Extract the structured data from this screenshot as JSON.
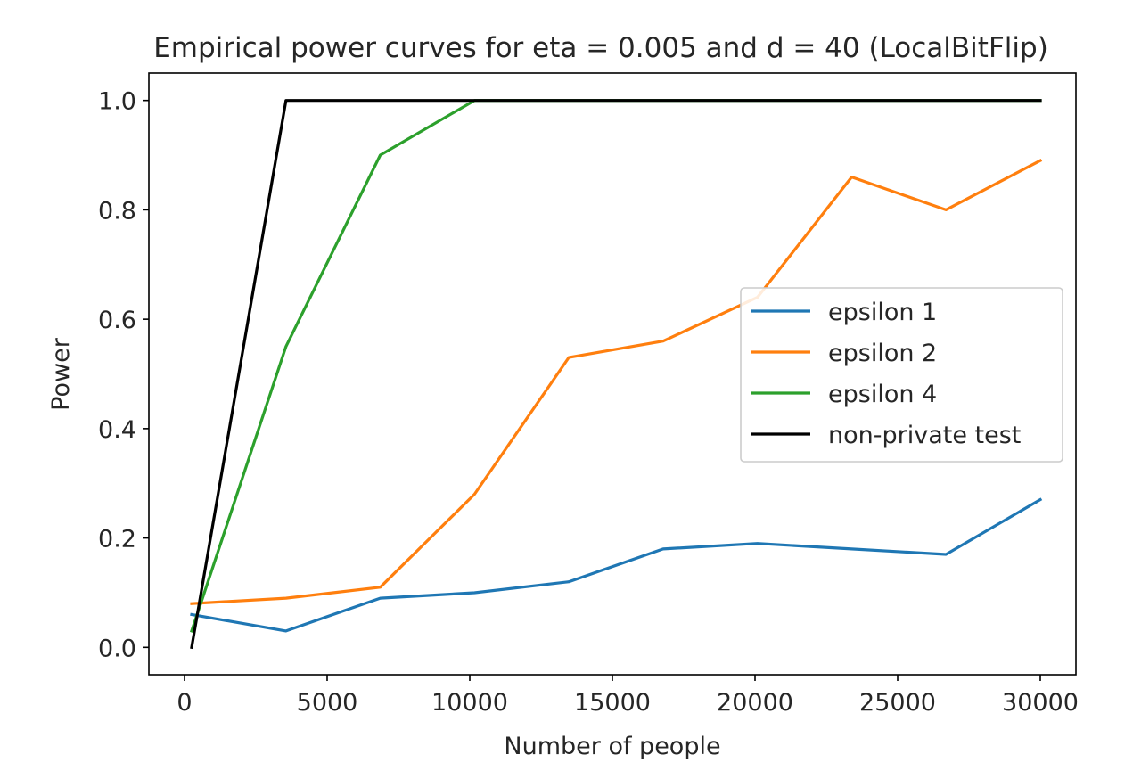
{
  "chart_data": {
    "type": "line",
    "title": "Empirical power curves for eta = 0.005 and d = 40 (LocalBitFlip)",
    "xlabel": "Number of people",
    "ylabel": "Power",
    "xlim": [
      -1250,
      31250
    ],
    "ylim": [
      -0.05,
      1.05
    ],
    "xticks": [
      0,
      5000,
      10000,
      15000,
      20000,
      25000,
      30000
    ],
    "xtick_labels": [
      "0",
      "5000",
      "10000",
      "15000",
      "20000",
      "25000",
      "30000"
    ],
    "yticks": [
      0.0,
      0.2,
      0.4,
      0.6,
      0.8,
      1.0
    ],
    "ytick_labels": [
      "0.0",
      "0.2",
      "0.4",
      "0.6",
      "0.8",
      "1.0"
    ],
    "grid": false,
    "legend_position": "center-right",
    "x": [
      250,
      3555,
      6861,
      10166,
      13472,
      16777,
      20083,
      23388,
      26694,
      30000
    ],
    "series": [
      {
        "name": "epsilon 1",
        "color": "#1f77b4",
        "values": [
          0.06,
          0.03,
          0.09,
          0.1,
          0.12,
          0.18,
          0.19,
          0.18,
          0.17,
          0.27
        ]
      },
      {
        "name": "epsilon 2",
        "color": "#ff7f0e",
        "values": [
          0.08,
          0.09,
          0.11,
          0.28,
          0.53,
          0.56,
          0.64,
          0.86,
          0.8,
          0.89
        ]
      },
      {
        "name": "epsilon 4",
        "color": "#2ca02c",
        "values": [
          0.03,
          0.55,
          0.9,
          1.0,
          1.0,
          1.0,
          1.0,
          1.0,
          1.0,
          1.0
        ]
      },
      {
        "name": "non-private test",
        "color": "#000000",
        "values": [
          0.0,
          1.0,
          1.0,
          1.0,
          1.0,
          1.0,
          1.0,
          1.0,
          1.0,
          1.0
        ]
      }
    ]
  }
}
